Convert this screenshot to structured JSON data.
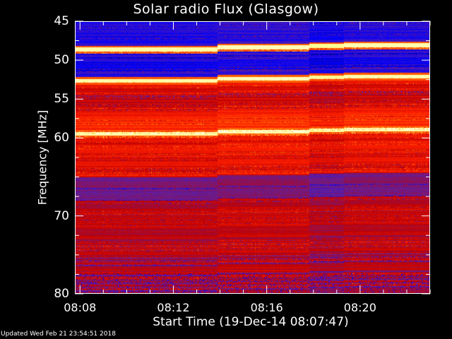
{
  "chart_data": {
    "type": "heatmap",
    "title": "Solar radio Flux (Glasgow)",
    "xlabel": "Start Time (19-Dec-14 08:07:47)",
    "ylabel": "Frequency [MHz]",
    "x_tick_labels": [
      "08:08",
      "08:12",
      "08:16",
      "08:20"
    ],
    "x_ticks_minutes": [
      8,
      12,
      16,
      20
    ],
    "xlim_minutes_after_0800": [
      7.78,
      23.0
    ],
    "y_tick_labels": [
      "45",
      "50",
      "55",
      "60",
      "70",
      "80"
    ],
    "y_ticks": [
      45,
      50,
      55,
      60,
      70,
      80
    ],
    "ylim": [
      45,
      80
    ],
    "y_reversed": true,
    "colormap": [
      "#000040",
      "#0000ff",
      "#6020a0",
      "#c00000",
      "#ff2000",
      "#ff8000",
      "#ffff80",
      "#ffffff"
    ],
    "segment_boundaries_minutes": [
      13.87,
      17.8,
      19.28
    ],
    "bright_lines_mhz": [
      48.6,
      52.6,
      59.4
    ],
    "bands": [
      {
        "from": 45,
        "to": 53,
        "level": "low"
      },
      {
        "from": 53,
        "to": 65,
        "level": "high"
      },
      {
        "from": 65,
        "to": 68,
        "level": "low-mid"
      },
      {
        "from": 68,
        "to": 80,
        "level": "mid-high"
      }
    ]
  },
  "footer": {
    "updated": "Updated Wed Feb 21 23:54:51 2018"
  }
}
